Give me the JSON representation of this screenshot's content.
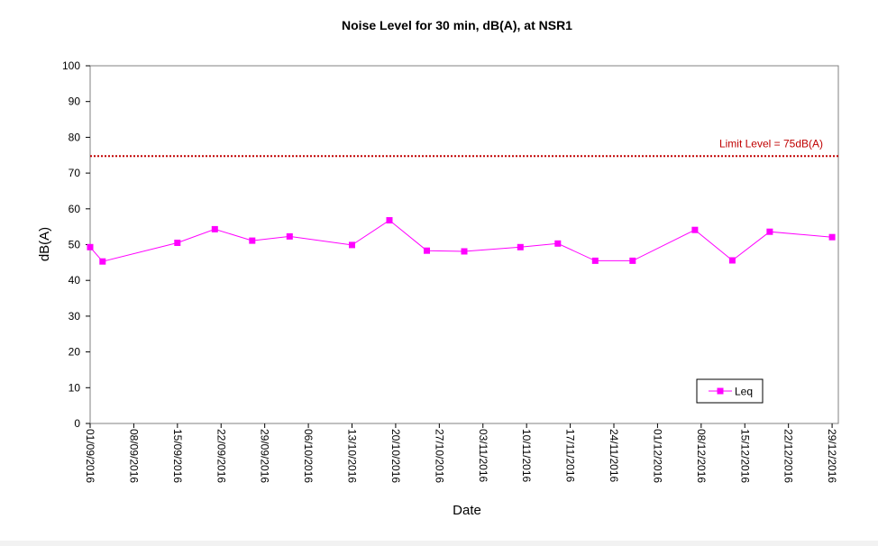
{
  "chart_data": {
    "type": "line",
    "title": "Noise Level for 30 min, dB(A), at NSR1",
    "xlabel": "Date",
    "ylabel": "dB(A)",
    "ylim": [
      0,
      100
    ],
    "y_ticks": [
      "0",
      "10",
      "20",
      "30",
      "40",
      "50",
      "60",
      "70",
      "80",
      "90",
      "100"
    ],
    "xlim": [
      "2016-09-01",
      "2016-12-30"
    ],
    "x_ticks": [
      "01/09/2016",
      "08/09/2016",
      "15/09/2016",
      "22/09/2016",
      "29/09/2016",
      "06/10/2016",
      "13/10/2016",
      "20/10/2016",
      "27/10/2016",
      "03/11/2016",
      "10/11/2016",
      "17/11/2016",
      "24/11/2016",
      "01/12/2016",
      "08/12/2016",
      "15/12/2016",
      "22/12/2016",
      "29/12/2016"
    ],
    "grid": false,
    "legend_position": "bottom-right",
    "series": [
      {
        "name": "Leq",
        "color": "#ff00ff",
        "marker": "square",
        "points": [
          {
            "x": "2016-09-01",
            "y": 49.3
          },
          {
            "x": "2016-09-03",
            "y": 45.3
          },
          {
            "x": "2016-09-15",
            "y": 50.5
          },
          {
            "x": "2016-09-21",
            "y": 54.3
          },
          {
            "x": "2016-09-27",
            "y": 51.1
          },
          {
            "x": "2016-10-03",
            "y": 52.3
          },
          {
            "x": "2016-10-13",
            "y": 49.9
          },
          {
            "x": "2016-10-19",
            "y": 56.8
          },
          {
            "x": "2016-10-25",
            "y": 48.3
          },
          {
            "x": "2016-10-31",
            "y": 48.1
          },
          {
            "x": "2016-11-09",
            "y": 49.3
          },
          {
            "x": "2016-11-15",
            "y": 50.3
          },
          {
            "x": "2016-11-21",
            "y": 45.5
          },
          {
            "x": "2016-11-27",
            "y": 45.5
          },
          {
            "x": "2016-12-07",
            "y": 54.1
          },
          {
            "x": "2016-12-13",
            "y": 45.6
          },
          {
            "x": "2016-12-19",
            "y": 53.6
          },
          {
            "x": "2016-12-29",
            "y": 52.1
          }
        ]
      }
    ],
    "reference_line": {
      "label": "Limit Level = 75dB(A)",
      "value": 75,
      "color": "#c00000",
      "style": "dotted"
    }
  }
}
